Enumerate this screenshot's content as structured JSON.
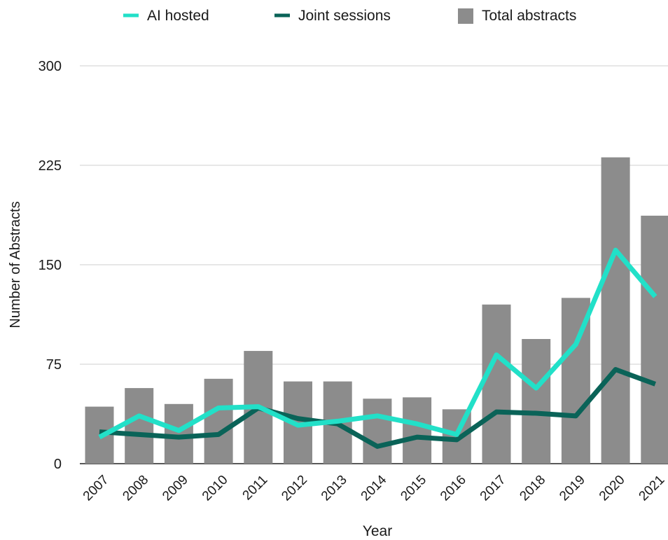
{
  "chart_data": {
    "type": "bar",
    "title": "",
    "xlabel": "Year",
    "ylabel": "Number of Abstracts",
    "categories": [
      "2007",
      "2008",
      "2009",
      "2010",
      "2011",
      "2012",
      "2013",
      "2014",
      "2015",
      "2016",
      "2017",
      "2018",
      "2019",
      "2020",
      "2021"
    ],
    "ylim": [
      0,
      300
    ],
    "yticks": [
      "0",
      "75",
      "150",
      "225",
      "300"
    ],
    "grid": true,
    "legend_position": "top",
    "series": [
      {
        "name": "Total abstracts",
        "type": "bar",
        "color": "#8c8c8c",
        "values": [
          43,
          57,
          45,
          64,
          85,
          62,
          62,
          49,
          50,
          41,
          120,
          94,
          125,
          231,
          187
        ]
      },
      {
        "name": "AI hosted",
        "type": "line",
        "color": "#22e0c8",
        "values": [
          20,
          36,
          25,
          42,
          43,
          29,
          32,
          36,
          30,
          22,
          82,
          57,
          90,
          161,
          126
        ]
      },
      {
        "name": "Joint sessions",
        "type": "line",
        "color": "#0a6358",
        "values": [
          24,
          22,
          20,
          22,
          42,
          34,
          30,
          13,
          20,
          18,
          39,
          38,
          36,
          71,
          60
        ]
      }
    ]
  }
}
